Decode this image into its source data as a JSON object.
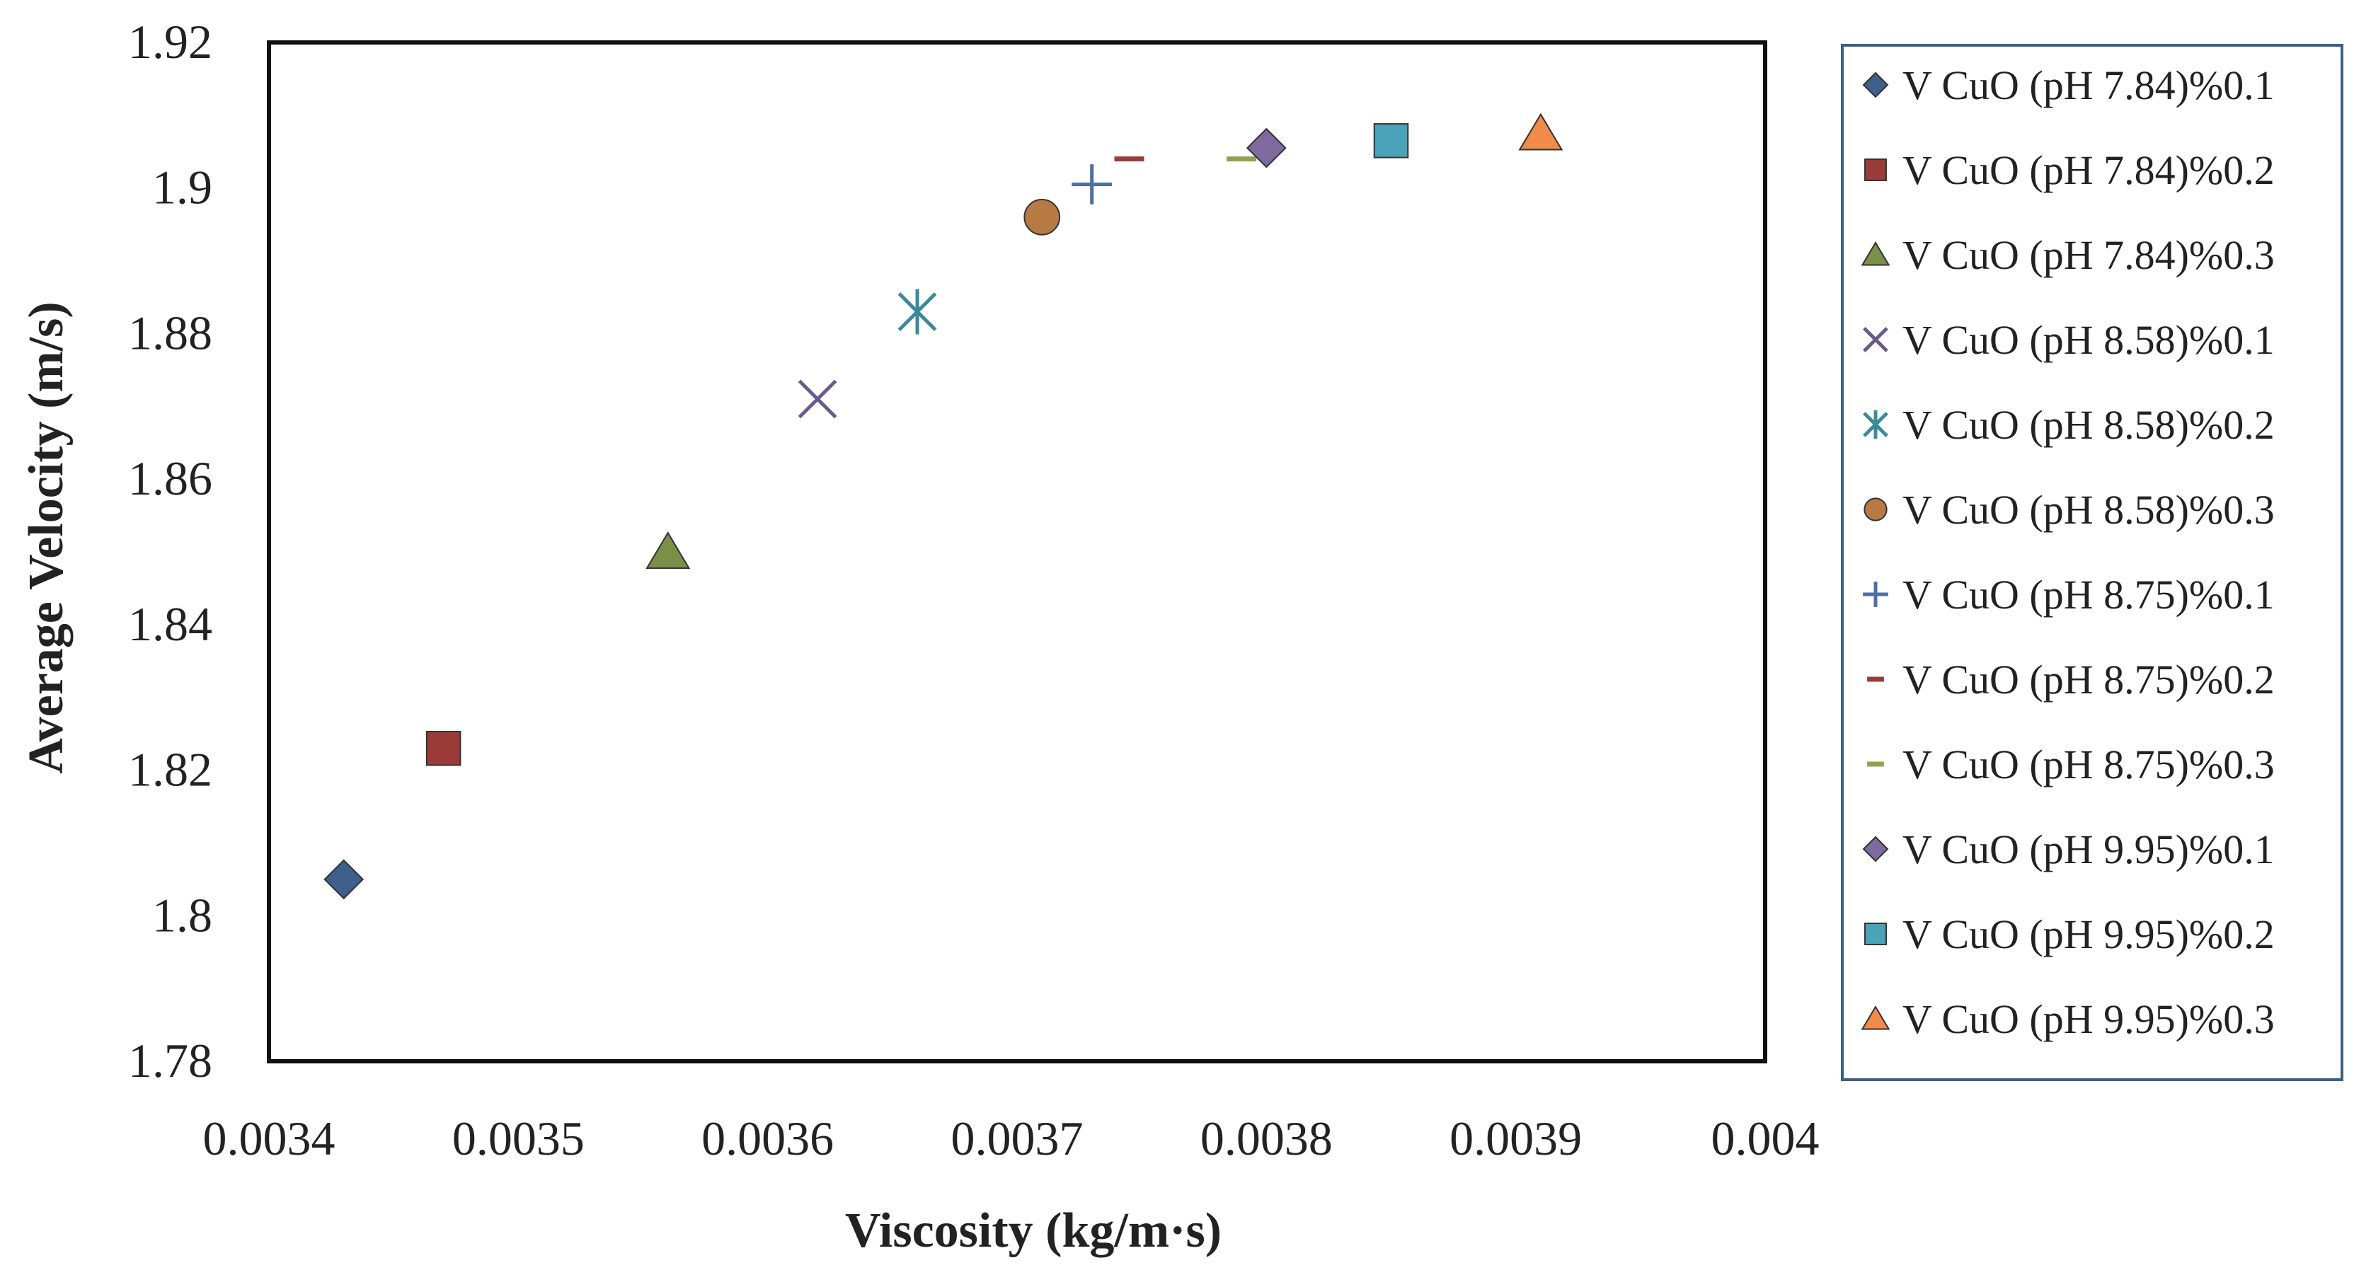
{
  "chart_data": {
    "type": "scatter",
    "title": "",
    "xlabel": "Viscosity (kg/m·s)",
    "ylabel": "Average Velocity (m/s)",
    "xlim": [
      0.0034,
      0.004
    ],
    "ylim": [
      1.78,
      1.92
    ],
    "xticks": [
      {
        "value": 0.0034,
        "label": "0.0034"
      },
      {
        "value": 0.0035,
        "label": "0.0035"
      },
      {
        "value": 0.0036,
        "label": "0.0036"
      },
      {
        "value": 0.0037,
        "label": "0.0037"
      },
      {
        "value": 0.0038,
        "label": "0.0038"
      },
      {
        "value": 0.0039,
        "label": "0.0039"
      },
      {
        "value": 0.004,
        "label": "0.004"
      }
    ],
    "yticks": [
      {
        "value": 1.78,
        "label": "1.78"
      },
      {
        "value": 1.8,
        "label": "1.8"
      },
      {
        "value": 1.82,
        "label": "1.82"
      },
      {
        "value": 1.84,
        "label": "1.84"
      },
      {
        "value": 1.86,
        "label": "1.86"
      },
      {
        "value": 1.88,
        "label": "1.88"
      },
      {
        "value": 1.9,
        "label": "1.9"
      },
      {
        "value": 1.92,
        "label": "1.92"
      }
    ],
    "grid": false,
    "legend_position": "right",
    "series": [
      {
        "name": "V CuO (pH 7.84)%0.1",
        "marker": "diamond",
        "color": "#3D5F8A",
        "x": 0.00343,
        "y": 1.805
      },
      {
        "name": "V CuO (pH 7.84)%0.2",
        "marker": "square",
        "color": "#9B3B38",
        "x": 0.00347,
        "y": 1.823
      },
      {
        "name": "V CuO (pH 7.84)%0.3",
        "marker": "triangle",
        "color": "#7A8F47",
        "x": 0.00356,
        "y": 1.85
      },
      {
        "name": "V CuO (pH 8.58)%0.1",
        "marker": "x",
        "color": "#6A5A8C",
        "x": 0.00362,
        "y": 1.871
      },
      {
        "name": "V CuO (pH 8.58)%0.2",
        "marker": "asterisk",
        "color": "#3A8A9A",
        "x": 0.00366,
        "y": 1.883
      },
      {
        "name": "V CuO (pH 8.58)%0.3",
        "marker": "circle",
        "color": "#B77A45",
        "x": 0.00371,
        "y": 1.896
      },
      {
        "name": "V CuO (pH 8.75)%0.1",
        "marker": "plus",
        "color": "#4D6EA1",
        "x": 0.00373,
        "y": 1.9005
      },
      {
        "name": "V CuO (pH 8.75)%0.2",
        "marker": "dash",
        "color": "#9B3B38",
        "x": 0.003745,
        "y": 1.904
      },
      {
        "name": "V CuO (pH 8.75)%0.3",
        "marker": "dash",
        "color": "#8FA352",
        "x": 0.00379,
        "y": 1.904
      },
      {
        "name": "V CuO (pH 9.95)%0.1",
        "marker": "diamond",
        "color": "#7E6A9E",
        "x": 0.0038,
        "y": 1.9055
      },
      {
        "name": "V CuO (pH 9.95)%0.2",
        "marker": "square",
        "color": "#4AA3B8",
        "x": 0.00385,
        "y": 1.9065
      },
      {
        "name": "V CuO (pH 9.95)%0.3",
        "marker": "triangle",
        "color": "#F08B4A",
        "x": 0.00391,
        "y": 1.9075
      }
    ]
  }
}
